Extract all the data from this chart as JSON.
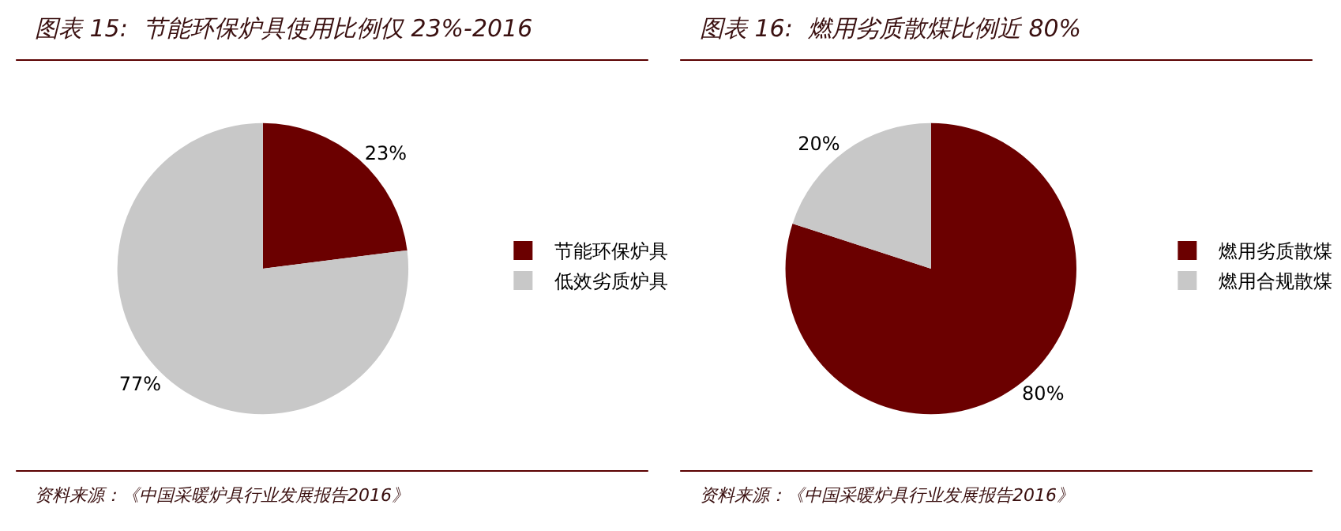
{
  "chart_data": [
    {
      "type": "pie",
      "title": "图表 15:  节能环保炉具使用比例仅 23%-2016",
      "categories": [
        "节能环保炉具",
        "低效劣质炉具"
      ],
      "values": [
        23,
        77
      ],
      "colors": [
        "#6b0000",
        "#c8c8c8"
      ],
      "value_labels": [
        "23%",
        "77%"
      ],
      "legend": "right",
      "annotations": [
        "资料来源：《中国采暖炉具行业发展报告2016》"
      ]
    },
    {
      "type": "pie",
      "title": "图表 16:  燃用劣质散煤比例近 80%",
      "categories": [
        "燃用劣质散煤",
        "燃用合规散煤"
      ],
      "values": [
        80,
        20
      ],
      "colors": [
        "#6b0000",
        "#c8c8c8"
      ],
      "value_labels": [
        "80%",
        "20%"
      ],
      "legend": "right",
      "annotations": [
        "资料来源：《中国采暖炉具行业发展报告2016》"
      ]
    }
  ]
}
